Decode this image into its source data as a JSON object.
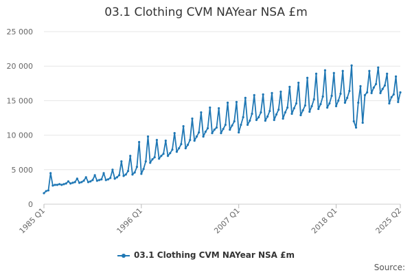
{
  "title": "03.1 Clothing CVM NAYear NSA £m",
  "legend_label": "03.1 Clothing CVM NAYear NSA £m",
  "source_label": "Source:",
  "colors": {
    "series": "#1f77b4",
    "grid": "#e6e6e6",
    "axis_text": "#666666"
  },
  "chart_data": {
    "type": "line",
    "title": "03.1 Clothing CVM NAYear NSA £m",
    "xlabel": "",
    "ylabel": "",
    "x_tick_labels": [
      "1985 Q1",
      "1996 Q1",
      "2007 Q1",
      "2018 Q1",
      "2025 Q2"
    ],
    "y_ticks": [
      0,
      5000,
      10000,
      15000,
      20000,
      25000
    ],
    "y_tick_labels": [
      "0",
      "5 000",
      "10 000",
      "15 000",
      "20 000",
      "25 000"
    ],
    "ylim": [
      0,
      25000
    ],
    "x_start": "1985 Q1",
    "x_end": "2025 Q2",
    "frequency": "quarterly",
    "grid": true,
    "legend_position": "bottom",
    "series": [
      {
        "name": "03.1 Clothing CVM NAYear NSA £m",
        "x": [
          "1985 Q1",
          "1985 Q2",
          "1985 Q3",
          "1985 Q4",
          "1986 Q1",
          "1986 Q2",
          "1986 Q3",
          "1986 Q4",
          "1987 Q1",
          "1987 Q2",
          "1987 Q3",
          "1987 Q4",
          "1988 Q1",
          "1988 Q2",
          "1988 Q3",
          "1988 Q4",
          "1989 Q1",
          "1989 Q2",
          "1989 Q3",
          "1989 Q4",
          "1990 Q1",
          "1990 Q2",
          "1990 Q3",
          "1990 Q4",
          "1991 Q1",
          "1991 Q2",
          "1991 Q3",
          "1991 Q4",
          "1992 Q1",
          "1992 Q2",
          "1992 Q3",
          "1992 Q4",
          "1993 Q1",
          "1993 Q2",
          "1993 Q3",
          "1993 Q4",
          "1994 Q1",
          "1994 Q2",
          "1994 Q3",
          "1994 Q4",
          "1995 Q1",
          "1995 Q2",
          "1995 Q3",
          "1995 Q4",
          "1996 Q1",
          "1996 Q2",
          "1996 Q3",
          "1996 Q4",
          "1997 Q1",
          "1997 Q2",
          "1997 Q3",
          "1997 Q4",
          "1998 Q1",
          "1998 Q2",
          "1998 Q3",
          "1998 Q4",
          "1999 Q1",
          "1999 Q2",
          "1999 Q3",
          "1999 Q4",
          "2000 Q1",
          "2000 Q2",
          "2000 Q3",
          "2000 Q4",
          "2001 Q1",
          "2001 Q2",
          "2001 Q3",
          "2001 Q4",
          "2002 Q1",
          "2002 Q2",
          "2002 Q3",
          "2002 Q4",
          "2003 Q1",
          "2003 Q2",
          "2003 Q3",
          "2003 Q4",
          "2004 Q1",
          "2004 Q2",
          "2004 Q3",
          "2004 Q4",
          "2005 Q1",
          "2005 Q2",
          "2005 Q3",
          "2005 Q4",
          "2006 Q1",
          "2006 Q2",
          "2006 Q3",
          "2006 Q4",
          "2007 Q1",
          "2007 Q2",
          "2007 Q3",
          "2007 Q4",
          "2008 Q1",
          "2008 Q2",
          "2008 Q3",
          "2008 Q4",
          "2009 Q1",
          "2009 Q2",
          "2009 Q3",
          "2009 Q4",
          "2010 Q1",
          "2010 Q2",
          "2010 Q3",
          "2010 Q4",
          "2011 Q1",
          "2011 Q2",
          "2011 Q3",
          "2011 Q4",
          "2012 Q1",
          "2012 Q2",
          "2012 Q3",
          "2012 Q4",
          "2013 Q1",
          "2013 Q2",
          "2013 Q3",
          "2013 Q4",
          "2014 Q1",
          "2014 Q2",
          "2014 Q3",
          "2014 Q4",
          "2015 Q1",
          "2015 Q2",
          "2015 Q3",
          "2015 Q4",
          "2016 Q1",
          "2016 Q2",
          "2016 Q3",
          "2016 Q4",
          "2017 Q1",
          "2017 Q2",
          "2017 Q3",
          "2017 Q4",
          "2018 Q1",
          "2018 Q2",
          "2018 Q3",
          "2018 Q4",
          "2019 Q1",
          "2019 Q2",
          "2019 Q3",
          "2019 Q4",
          "2020 Q1",
          "2020 Q2",
          "2020 Q3",
          "2020 Q4",
          "2021 Q1",
          "2021 Q2",
          "2021 Q3",
          "2021 Q4",
          "2022 Q1",
          "2022 Q2",
          "2022 Q3",
          "2022 Q4",
          "2023 Q1",
          "2023 Q2",
          "2023 Q3",
          "2023 Q4",
          "2024 Q1",
          "2024 Q2",
          "2024 Q3",
          "2024 Q4",
          "2025 Q1",
          "2025 Q2"
        ],
        "values": [
          1600,
          1900,
          2000,
          4500,
          2700,
          2800,
          2800,
          2900,
          2800,
          2900,
          3000,
          3300,
          3000,
          3100,
          3200,
          3700,
          3100,
          3200,
          3400,
          3900,
          3200,
          3300,
          3500,
          4200,
          3400,
          3500,
          3600,
          4500,
          3500,
          3600,
          3800,
          5000,
          3700,
          3900,
          4200,
          6200,
          4100,
          4300,
          4800,
          7000,
          4300,
          4600,
          5400,
          9000,
          4400,
          5100,
          6200,
          9800,
          6000,
          6500,
          6800,
          9300,
          6600,
          7000,
          7300,
          9200,
          7000,
          7400,
          7900,
          10300,
          7600,
          8100,
          8700,
          11300,
          8100,
          8600,
          9300,
          12400,
          9200,
          9800,
          10400,
          13300,
          9800,
          10500,
          11000,
          14000,
          10300,
          10800,
          11100,
          13900,
          10300,
          10900,
          11500,
          14700,
          10800,
          11400,
          12000,
          14800,
          10400,
          11500,
          12600,
          15400,
          11500,
          12100,
          13100,
          15800,
          12200,
          12600,
          13300,
          15900,
          12100,
          12700,
          13500,
          16100,
          12200,
          13000,
          13700,
          16300,
          12400,
          13300,
          14000,
          17000,
          13100,
          13900,
          14600,
          17600,
          12900,
          13600,
          14300,
          18300,
          13400,
          14200,
          15200,
          18900,
          13800,
          14500,
          15600,
          19400,
          14000,
          14600,
          15700,
          19000,
          14200,
          15000,
          16000,
          19300,
          14700,
          15400,
          16400,
          20100,
          12000,
          11100,
          14700,
          17100,
          11800,
          15800,
          16200,
          19300,
          16100,
          16900,
          17400,
          19800,
          16100,
          16700,
          17200,
          18900,
          14600,
          15500,
          15900,
          18500,
          14800,
          16200
        ]
      }
    ]
  }
}
